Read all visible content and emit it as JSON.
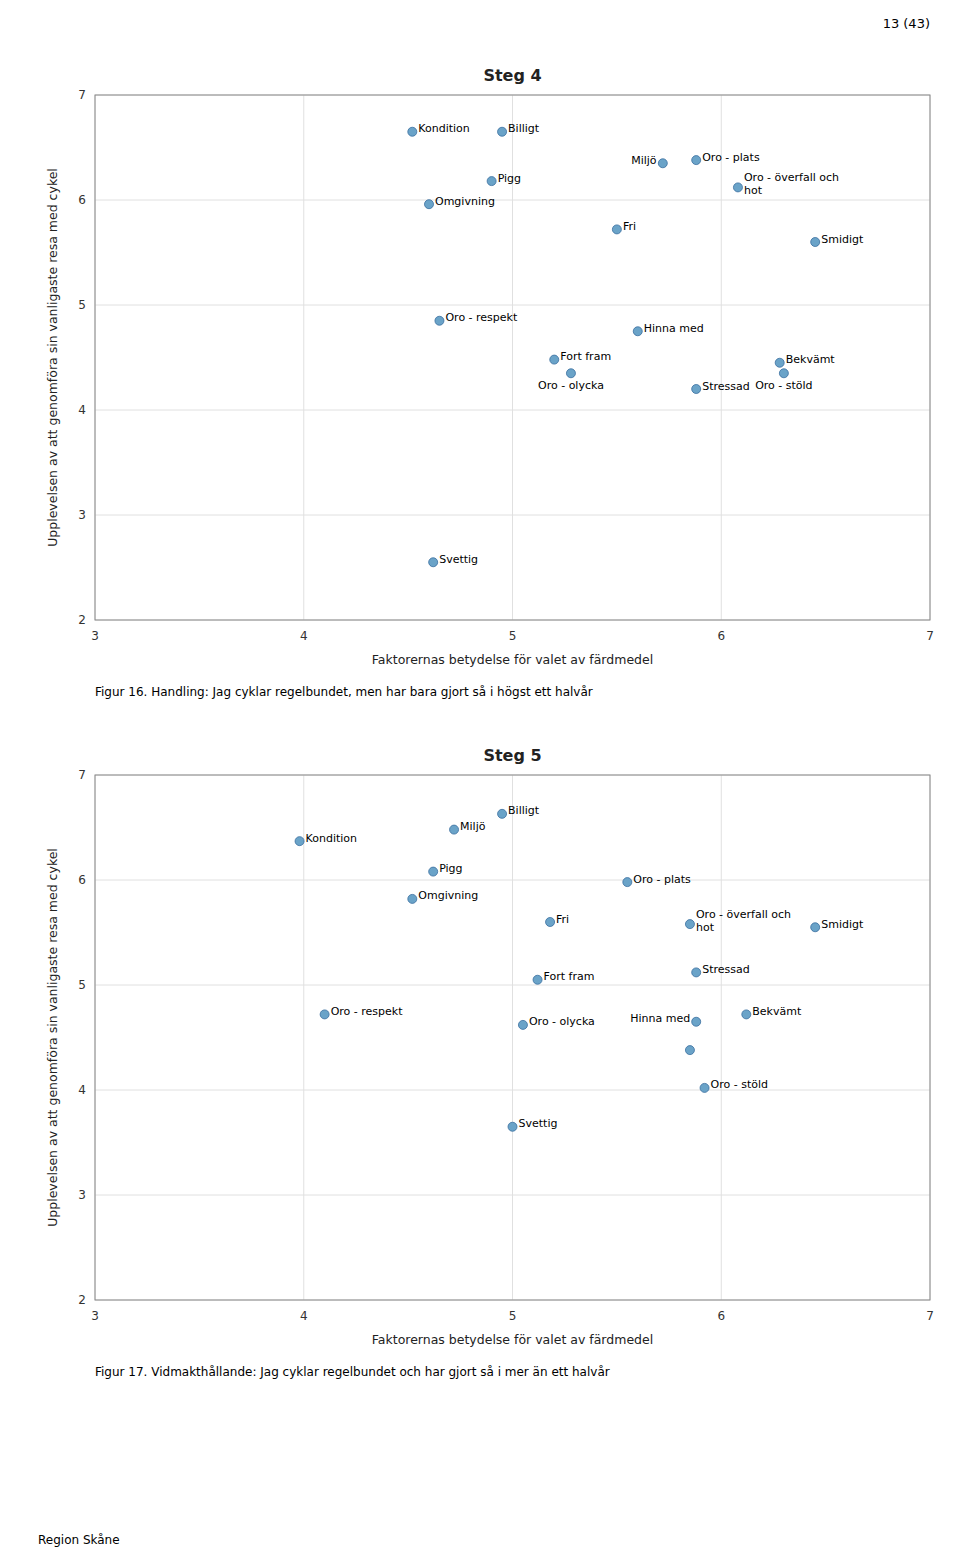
{
  "page_number": "13 (43)",
  "footer": "Region Skåne",
  "chart_data": [
    {
      "type": "scatter",
      "title": "Steg 4",
      "caption": "Figur 16. Handling: Jag cyklar regelbundet, men har bara gjort så i högst ett halvår",
      "xlabel": "Faktorernas betydelse för valet av färdmedel",
      "ylabel": "Upplevelsen av att genomföra sin vanligaste resa med cykel",
      "labels": [
        "Billigt",
        "Kondition",
        "Miljö",
        "Oro - plats",
        "Pigg",
        "Oro - överfall och\nhot",
        "Omgivning",
        "Fri",
        "Smidigt",
        "Oro - respekt",
        "Hinna med",
        "Fort fram",
        "Bekvämt",
        "Oro - olycka",
        "Oro - stöld",
        "Stressad",
        "Svettig"
      ],
      "x": [
        4.95,
        4.52,
        5.72,
        5.88,
        4.9,
        6.08,
        4.6,
        5.5,
        6.45,
        4.65,
        5.6,
        5.2,
        6.28,
        5.28,
        6.3,
        5.88,
        4.62
      ],
      "values": [
        6.65,
        6.65,
        6.35,
        6.38,
        6.18,
        6.12,
        5.96,
        5.72,
        5.6,
        4.85,
        4.75,
        4.48,
        4.45,
        4.35,
        4.35,
        4.2,
        2.55
      ],
      "color": "#6aa3c8",
      "xlim": [
        3,
        7
      ],
      "ylim": [
        2,
        7
      ],
      "xticks": [
        3,
        4,
        5,
        6,
        7
      ],
      "yticks": [
        2,
        3,
        4,
        5,
        6,
        7
      ],
      "grid": true
    },
    {
      "type": "scatter",
      "title": "Steg 5",
      "caption": "Figur 17. Vidmakthållande: Jag cyklar regelbundet och har gjort så i mer än ett halvår",
      "xlabel": "Faktorernas betydelse för valet av färdmedel",
      "ylabel": "Upplevelsen av att genomföra sin vanligaste resa med cykel",
      "labels": [
        "Billigt",
        "Miljö",
        "Kondition",
        "Pigg",
        "Oro - plats",
        "Omgivning",
        "Fri",
        "Smidigt",
        "Oro - överfall och\nhot",
        "Stressad",
        "Fort fram",
        "Bekvämt",
        "Hinna med",
        "Oro - respekt",
        "Oro - olycka",
        null,
        "Oro - stöld",
        "Svettig"
      ],
      "x": [
        4.95,
        4.72,
        3.98,
        4.62,
        5.55,
        4.52,
        5.18,
        6.45,
        5.85,
        5.88,
        5.12,
        6.12,
        5.88,
        4.1,
        5.05,
        5.85,
        5.92,
        5.0
      ],
      "values": [
        6.63,
        6.48,
        6.37,
        6.08,
        5.98,
        5.82,
        5.6,
        5.55,
        5.58,
        5.12,
        5.05,
        4.72,
        4.65,
        4.72,
        4.62,
        4.38,
        4.02,
        3.65
      ],
      "color": "#6aa3c8",
      "xlim": [
        3,
        7
      ],
      "ylim": [
        2,
        7
      ],
      "xticks": [
        3,
        4,
        5,
        6,
        7
      ],
      "yticks": [
        2,
        3,
        4,
        5,
        6,
        7
      ],
      "grid": true
    }
  ]
}
